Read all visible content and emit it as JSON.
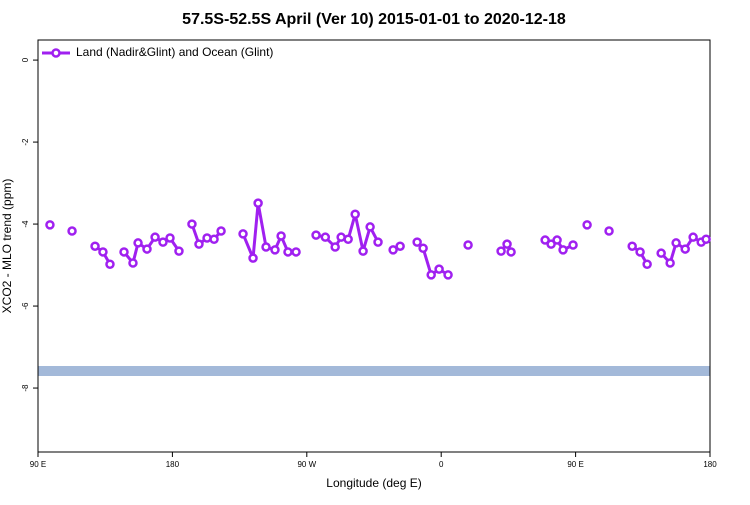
{
  "chart_data": {
    "type": "line",
    "title": "57.5S-52.5S April (Ver 10)   2015-01-01 to 2020-12-18",
    "x_label": "Longitude (deg E)",
    "y_label": "XCO2 - MLO trend (ppm)",
    "legend": "topleft",
    "xlim": [
      90,
      540
    ],
    "ylim": [
      -9.56,
      0.49
    ],
    "xticks": [
      {
        "value": 90,
        "label": "90 E"
      },
      180,
      {
        "value": 270,
        "label": "90 W"
      },
      {
        "value": 360,
        "label": "0"
      },
      {
        "value": 450,
        "label": "90 E"
      },
      {
        "value": 540,
        "label": "180"
      }
    ],
    "yticks": [
      0,
      -2,
      -4,
      -6,
      -8
    ],
    "series": [
      {
        "name": "Land (Nadir&Glint) and Ocean (Glint)",
        "color": "#a020f0",
        "x": [
          98,
          null,
          112.8,
          null,
          128.2,
          133.5,
          138.2,
          null,
          147.6,
          153.6,
          157,
          163,
          168.4,
          173.7,
          178.4,
          184.4,
          null,
          193.1,
          197.8,
          203.2,
          207.9,
          212.6,
          null,
          227.3,
          234,
          237.4,
          242.7,
          248.7,
          252.8,
          257.4,
          262.8,
          null,
          276.2,
          282.4,
          289,
          293,
          297.7,
          302.4,
          307.7,
          312.4,
          317.7,
          null,
          327.8,
          332.5,
          null,
          343.9,
          347.9,
          353.3,
          358.6,
          364.6,
          null,
          378,
          null,
          400.1,
          404.1,
          406.8,
          null,
          429.6,
          433.6,
          437.6,
          441.6,
          448.3,
          null,
          457.7,
          null,
          472.4,
          null,
          487.9,
          493.2,
          497.9,
          null,
          507.3,
          513.3,
          517.3,
          523.4,
          528.7,
          534.1,
          537.4
        ],
        "values": [
          -4.02,
          null,
          -4.17,
          null,
          -4.54,
          -4.68,
          -4.98,
          null,
          -4.68,
          -4.95,
          -4.46,
          -4.61,
          -4.32,
          -4.44,
          -4.34,
          -4.66,
          null,
          -4.0,
          -4.49,
          -4.34,
          -4.37,
          -4.17,
          null,
          -4.24,
          -4.83,
          -3.49,
          -4.56,
          -4.63,
          -4.29,
          -4.68,
          -4.68,
          null,
          -4.27,
          -4.32,
          -4.56,
          -4.32,
          -4.37,
          -3.76,
          -4.66,
          -4.07,
          -4.44,
          null,
          -4.63,
          -4.54,
          null,
          -4.44,
          -4.59,
          -5.24,
          -5.1,
          -5.24,
          null,
          -4.51,
          null,
          -4.66,
          -4.49,
          -4.68,
          null,
          -4.39,
          -4.49,
          -4.39,
          -4.63,
          -4.51,
          null,
          -4.02,
          null,
          -4.17,
          null,
          -4.54,
          -4.68,
          -4.98,
          null,
          -4.71,
          -4.95,
          -4.46,
          -4.61,
          -4.32,
          -4.44,
          -4.37
        ]
      }
    ]
  }
}
